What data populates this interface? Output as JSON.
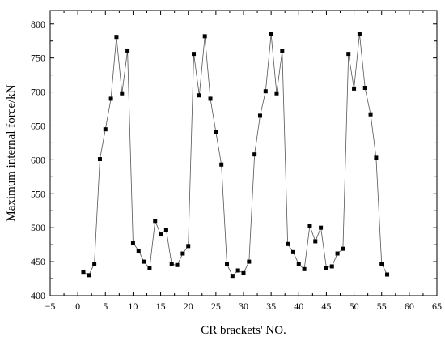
{
  "chart_data": {
    "type": "line",
    "xlabel": "CR brackets' NO.",
    "ylabel": "Maximum internal force/kN",
    "xlim": [
      -5,
      65
    ],
    "ylim": [
      400,
      820
    ],
    "x_ticks": [
      -5,
      0,
      5,
      10,
      15,
      20,
      25,
      30,
      35,
      40,
      45,
      50,
      55,
      60,
      65
    ],
    "y_ticks": [
      400,
      450,
      500,
      550,
      600,
      650,
      700,
      750,
      800
    ],
    "grid": false,
    "legend": "none",
    "series": [
      {
        "marker": "square",
        "color": "#000000",
        "x": [
          1,
          2,
          3,
          4,
          5,
          6,
          7,
          8,
          9,
          10,
          11,
          12,
          13,
          14,
          15,
          16,
          17,
          18,
          19,
          20,
          21,
          22,
          23,
          24,
          25,
          26,
          27,
          28,
          29,
          30,
          31,
          32,
          33,
          34,
          35,
          36,
          37,
          38,
          39,
          40,
          41,
          42,
          43,
          44,
          45,
          46,
          47,
          48,
          49,
          50,
          51,
          52,
          53,
          54,
          55,
          56
        ],
        "y": [
          435,
          430,
          447,
          601,
          645,
          690,
          781,
          698,
          761,
          478,
          466,
          450,
          440,
          510,
          490,
          497,
          446,
          445,
          462,
          473,
          756,
          695,
          782,
          690,
          641,
          593,
          446,
          429,
          437,
          433,
          450,
          608,
          665,
          701,
          785,
          698,
          760,
          476,
          464,
          446,
          439,
          503,
          480,
          500,
          441,
          443,
          462,
          469,
          756,
          705,
          786,
          706,
          667,
          603,
          447,
          431
        ]
      }
    ]
  }
}
